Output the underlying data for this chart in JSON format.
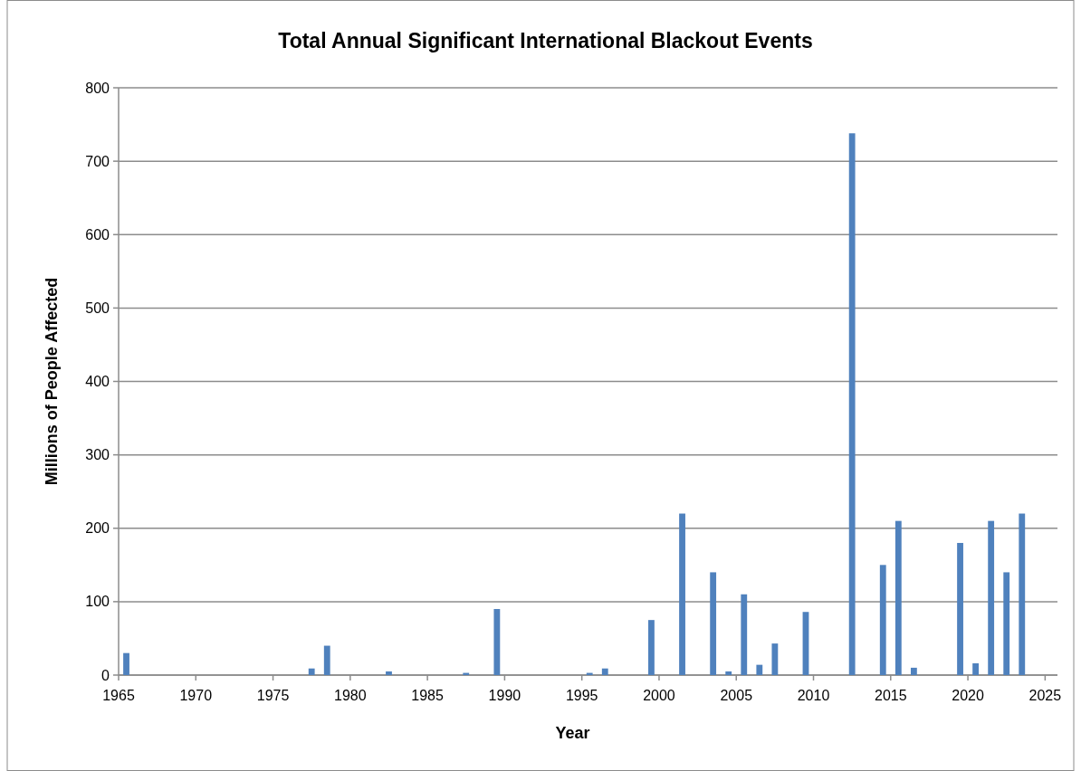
{
  "chart_data": {
    "type": "bar",
    "title": "Total Annual Significant International Blackout Events",
    "xlabel": "Year",
    "ylabel": "Millions of People Affected",
    "x": [
      1965.5,
      1977.5,
      1978.5,
      1982.5,
      1987.5,
      1989.5,
      1995.5,
      1996.5,
      1999.5,
      2001.5,
      2003.5,
      2004.5,
      2005.5,
      2006.5,
      2007.5,
      2009.5,
      2012.5,
      2014.5,
      2015.5,
      2016.5,
      2019.5,
      2020.5,
      2021.5,
      2022.5,
      2023.5
    ],
    "values": [
      30,
      9,
      40,
      5,
      3,
      90,
      3,
      9,
      75,
      220,
      140,
      5,
      110,
      14,
      43,
      86,
      738,
      150,
      210,
      10,
      180,
      16,
      210,
      140,
      220
    ],
    "color": "#4f81bd",
    "xlim": [
      1965,
      2025.8
    ],
    "xticks": [
      1965,
      1970,
      1975,
      1980,
      1985,
      1990,
      1995,
      2000,
      2005,
      2010,
      2015,
      2020,
      2025
    ],
    "ylim": [
      0,
      800
    ],
    "yticks": [
      0,
      100,
      200,
      300,
      400,
      500,
      600,
      700,
      800
    ],
    "grid": "y"
  }
}
